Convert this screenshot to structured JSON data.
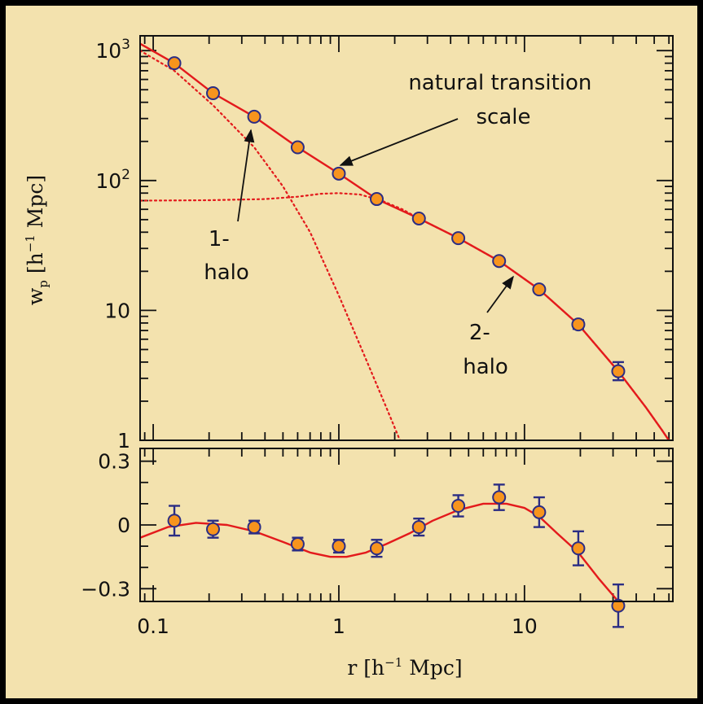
{
  "chart_data": [
    {
      "type": "scatter",
      "panel": "top",
      "xscale": "log",
      "yscale": "log",
      "xlim": [
        0.085,
        63
      ],
      "ylim": [
        1,
        1300
      ],
      "ylabel": "w_p [h^-1 Mpc]",
      "ylabel_parts": {
        "main": "w",
        "sub": "p",
        "unit_open": "[h",
        "unit_sup": "−1",
        "unit_close": " Mpc]"
      },
      "yticks": [
        {
          "value": 1,
          "label": "1"
        },
        {
          "value": 10,
          "label": "10"
        },
        {
          "value": 100,
          "label": "10",
          "sup": "2"
        },
        {
          "value": 1000,
          "label": "10",
          "sup": "3"
        }
      ],
      "series": [
        {
          "kind": "points",
          "marker_color": "#f7941d",
          "edge_color": "#2b2d84",
          "x": [
            0.13,
            0.21,
            0.35,
            0.6,
            1.0,
            1.6,
            2.7,
            4.4,
            7.3,
            12.0,
            19.5,
            32.0
          ],
          "y": [
            800,
            470,
            310,
            180,
            113,
            72,
            51,
            36,
            24,
            14.5,
            7.8,
            3.4
          ],
          "yerr_lo": [
            0,
            0,
            0,
            0,
            0,
            0,
            0,
            0,
            0,
            0,
            0.6,
            0.5
          ],
          "yerr_hi": [
            0,
            0,
            0,
            0,
            0,
            0,
            0,
            0,
            0,
            0,
            0.6,
            0.6
          ]
        },
        {
          "kind": "line",
          "style": "solid",
          "color": "#e31a1c",
          "x": [
            0.085,
            0.13,
            0.21,
            0.35,
            0.6,
            1.0,
            1.6,
            2.7,
            4.4,
            7.3,
            12.0,
            19.5,
            32.0,
            45,
            55,
            63
          ],
          "y": [
            1130,
            800,
            470,
            310,
            180,
            113,
            72,
            51,
            36,
            24,
            14.5,
            7.8,
            3.4,
            1.8,
            1.2,
            0.9
          ]
        },
        {
          "kind": "line",
          "style": "dotted",
          "color": "#e31a1c",
          "x": [
            0.085,
            0.13,
            0.21,
            0.35,
            0.5,
            0.7,
            1.0,
            1.4,
            1.8,
            2.2
          ],
          "y": [
            1000,
            700,
            380,
            180,
            90,
            40,
            13,
            4.2,
            1.8,
            0.9
          ]
        },
        {
          "kind": "line",
          "style": "dotted",
          "color": "#e31a1c",
          "x": [
            0.085,
            0.2,
            0.4,
            0.6,
            0.8,
            1.0,
            1.3,
            1.7,
            2.2,
            2.7,
            4.4,
            7.3,
            12.0,
            19.5,
            32.0,
            45,
            55,
            63
          ],
          "y": [
            70,
            70.5,
            72,
            75,
            79,
            80,
            78,
            70,
            60,
            51,
            36,
            24,
            14.5,
            7.8,
            3.4,
            1.8,
            1.2,
            0.9
          ]
        }
      ],
      "annotations": [
        {
          "id": "transition",
          "lines": [
            "natural transition",
            "scale"
          ]
        },
        {
          "id": "one-halo",
          "lines": [
            "1-",
            "halo"
          ]
        },
        {
          "id": "two-halo",
          "lines": [
            "2-",
            "halo"
          ]
        }
      ]
    },
    {
      "type": "scatter",
      "panel": "bottom",
      "xscale": "log",
      "xlim": [
        0.085,
        63
      ],
      "ylim": [
        -0.36,
        0.36
      ],
      "xlabel": "r [h^-1 Mpc]",
      "xlabel_parts": {
        "main": "r",
        "unit_open": "[h",
        "unit_sup": "−1",
        "unit_close": " Mpc]"
      },
      "xticks": [
        {
          "value": 0.1,
          "label": "0.1"
        },
        {
          "value": 1,
          "label": "1"
        },
        {
          "value": 10,
          "label": "10"
        }
      ],
      "yticks": [
        {
          "value": 0.3,
          "label": "0.3"
        },
        {
          "value": 0,
          "label": "0"
        },
        {
          "value": -0.3,
          "label": "−0.3"
        }
      ],
      "series": [
        {
          "kind": "points",
          "marker_color": "#f7941d",
          "edge_color": "#2b2d84",
          "x": [
            0.13,
            0.21,
            0.35,
            0.6,
            1.0,
            1.6,
            2.7,
            4.4,
            7.3,
            12.0,
            19.5,
            32.0
          ],
          "y": [
            0.02,
            -0.02,
            -0.01,
            -0.09,
            -0.1,
            -0.11,
            -0.01,
            0.09,
            0.13,
            0.06,
            -0.11,
            -0.38
          ],
          "yerr": [
            0.07,
            0.04,
            0.03,
            0.03,
            0.03,
            0.04,
            0.04,
            0.05,
            0.06,
            0.07,
            0.08,
            0.1
          ]
        },
        {
          "kind": "line",
          "style": "solid",
          "color": "#e31a1c",
          "x": [
            0.085,
            0.12,
            0.17,
            0.25,
            0.35,
            0.5,
            0.7,
            0.9,
            1.1,
            1.4,
            1.8,
            2.4,
            3.2,
            4.4,
            6.0,
            8.0,
            10,
            12,
            15,
            19.5,
            25,
            32,
            36
          ],
          "y": [
            -0.06,
            -0.01,
            0.01,
            0.0,
            -0.03,
            -0.08,
            -0.13,
            -0.15,
            -0.15,
            -0.13,
            -0.09,
            -0.04,
            0.02,
            0.07,
            0.1,
            0.1,
            0.08,
            0.04,
            -0.04,
            -0.13,
            -0.25,
            -0.36,
            -0.42
          ]
        }
      ]
    }
  ]
}
